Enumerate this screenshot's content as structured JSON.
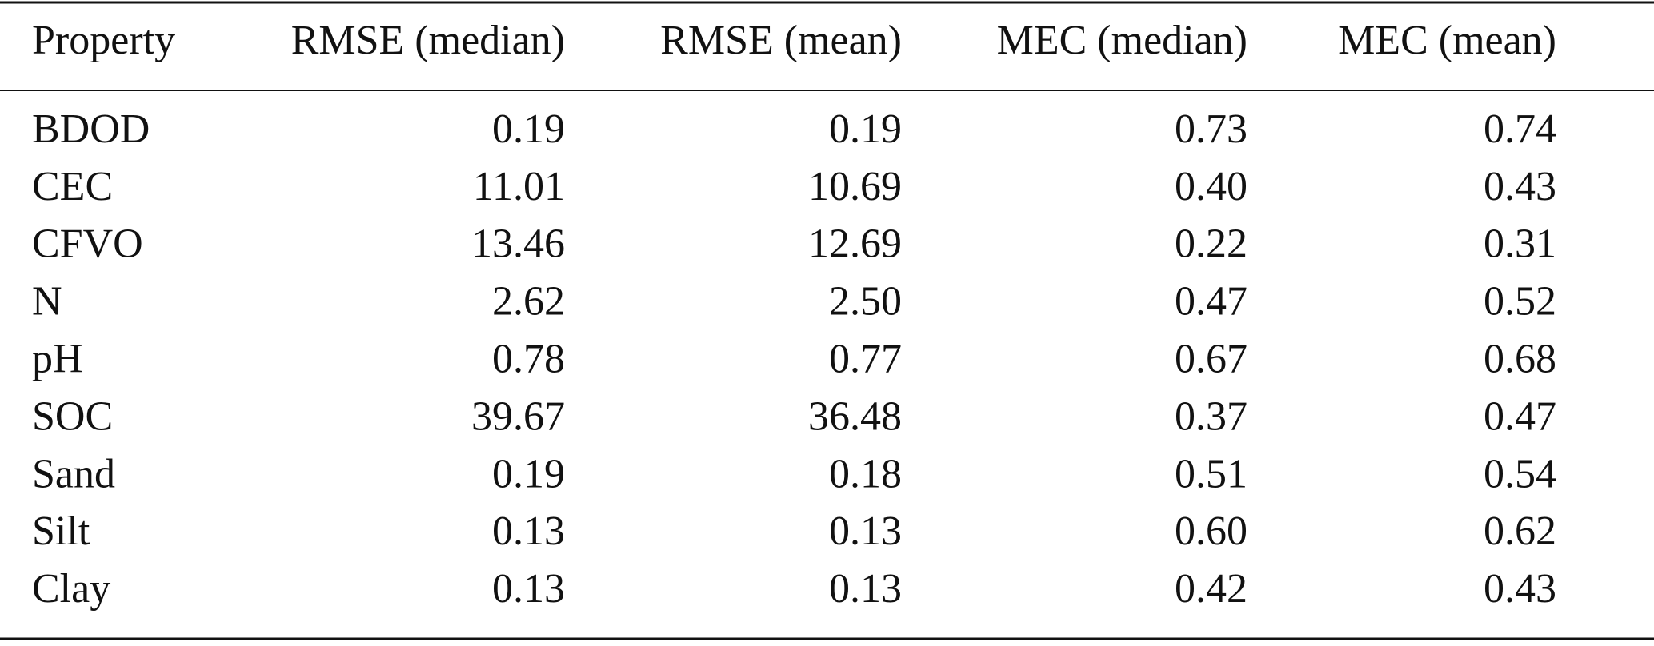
{
  "table": {
    "header": [
      "Property",
      "RMSE (median)",
      "RMSE (mean)",
      "MEC (median)",
      "MEC (mean)"
    ],
    "rows": [
      [
        "BDOD",
        "0.19",
        "0.19",
        "0.73",
        "0.74"
      ],
      [
        "CEC",
        "11.01",
        "10.69",
        "0.40",
        "0.43"
      ],
      [
        "CFVO",
        "13.46",
        "12.69",
        "0.22",
        "0.31"
      ],
      [
        "N",
        "2.62",
        "2.50",
        "0.47",
        "0.52"
      ],
      [
        "pH",
        "0.78",
        "0.77",
        "0.67",
        "0.68"
      ],
      [
        "SOC",
        "39.67",
        "36.48",
        "0.37",
        "0.47"
      ],
      [
        "Sand",
        "0.19",
        "0.18",
        "0.51",
        "0.54"
      ],
      [
        "Silt",
        "0.13",
        "0.13",
        "0.60",
        "0.62"
      ],
      [
        "Clay",
        "0.13",
        "0.13",
        "0.42",
        "0.43"
      ]
    ]
  }
}
